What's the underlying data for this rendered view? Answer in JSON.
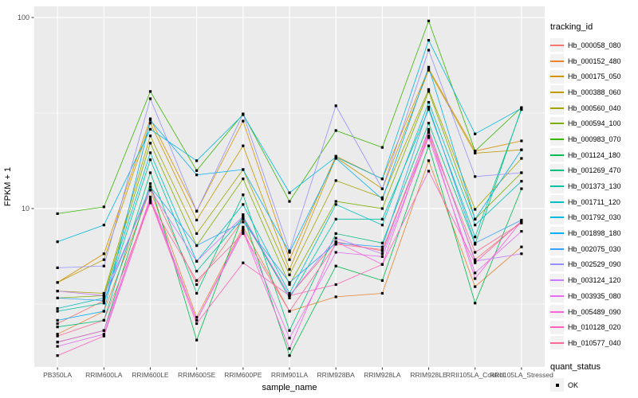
{
  "figure": {
    "panel_bg": "#EBEBEB",
    "grid_color": "#FFFFFF",
    "axis_text_color": "#4D4D4D",
    "tick_color": "#333333",
    "point_color": "#000000"
  },
  "axes": {
    "x_title": "sample_name",
    "y_title": "FPKM + 1",
    "y_tick_labels": [
      "100",
      "10"
    ]
  },
  "legend": {
    "title": "tracking_id"
  },
  "legend2": {
    "title": "quant_status",
    "items": [
      {
        "label": "OK",
        "marker": "black-square"
      }
    ]
  },
  "chart_data": {
    "type": "line",
    "title": "",
    "xlabel": "sample_name",
    "ylabel": "FPKM + 1",
    "y_scale": "log10",
    "ylim": [
      1.5,
      113
    ],
    "y_major_ticks": [
      10,
      100
    ],
    "y_minor_gridlines": [
      3.162,
      31.62
    ],
    "grid": true,
    "legend_position": "right",
    "point_marker": "black-square",
    "categories": [
      "PB350LA",
      "RRIM600LA",
      "RRIM600LE",
      "RRIM600SE",
      "RRIM600PE",
      "RRIM901LA",
      "RRIM928BA",
      "RRIM928LA",
      "RRIM928LE",
      "RRII105LA_Control",
      "RRII105LA_Stressed"
    ],
    "series": [
      {
        "name": "Hb_000058_080",
        "color": "#F8766D",
        "values": [
          2.5,
          3.3,
          13.0,
          4.0,
          8.8,
          3.5,
          6.7,
          6.0,
          25.5,
          5.4,
          8.5
        ]
      },
      {
        "name": "Hb_000152_480",
        "color": "#EA8331",
        "values": [
          2.2,
          2.9,
          12.5,
          2.7,
          8.0,
          2.9,
          3.45,
          3.6,
          17.8,
          3.9,
          6.3
        ]
      },
      {
        "name": "Hb_000175_050",
        "color": "#D89000",
        "values": [
          4.1,
          5.8,
          29.5,
          9.7,
          28.7,
          5.4,
          18.8,
          14.3,
          54.0,
          20.0,
          22.6
        ]
      },
      {
        "name": "Hb_000388_060",
        "color": "#C09B00",
        "values": [
          4.1,
          5.4,
          28.0,
          8.7,
          21.3,
          4.8,
          18.5,
          12.7,
          53.0,
          19.5,
          20.3
        ]
      },
      {
        "name": "Hb_000560_040",
        "color": "#A3A500",
        "values": [
          3.7,
          3.6,
          24.0,
          7.4,
          16.0,
          4.5,
          14.0,
          11.4,
          42.0,
          9.9,
          18.3
        ]
      },
      {
        "name": "Hb_000594_100",
        "color": "#7CAE00",
        "values": [
          3.4,
          3.5,
          22.0,
          6.4,
          14.3,
          4.0,
          10.9,
          10.0,
          41.0,
          8.8,
          15.4
        ]
      },
      {
        "name": "Hb_000983_070",
        "color": "#39B600",
        "values": [
          9.4,
          10.2,
          41.0,
          15.8,
          31.3,
          10.9,
          25.6,
          20.9,
          96.0,
          20.0,
          33.8
        ]
      },
      {
        "name": "Hb_001124_180",
        "color": "#00BB4E",
        "values": [
          2.0,
          2.3,
          13.5,
          2.05,
          9.3,
          1.7,
          5.0,
          4.2,
          21.3,
          3.2,
          12.7
        ]
      },
      {
        "name": "Hb_001269_470",
        "color": "#00BF7D",
        "values": [
          2.4,
          2.6,
          15.4,
          3.6,
          11.8,
          2.3,
          7.4,
          6.6,
          28.0,
          6.5,
          33.5
        ]
      },
      {
        "name": "Hb_001373_130",
        "color": "#00C1A3",
        "values": [
          2.9,
          3.2,
          18.0,
          4.7,
          9.0,
          3.4,
          8.8,
          8.8,
          33.0,
          7.1,
          33.0
        ]
      },
      {
        "name": "Hb_001711_120",
        "color": "#00BFC4",
        "values": [
          3.0,
          3.4,
          19.6,
          5.3,
          10.5,
          3.6,
          10.5,
          8.2,
          36.0,
          8.2,
          13.9
        ]
      },
      {
        "name": "Hb_001792_030",
        "color": "#00BAE0",
        "values": [
          6.7,
          8.2,
          26.0,
          17.8,
          31.0,
          12.1,
          18.6,
          14.3,
          76.0,
          24.6,
          33.5
        ]
      },
      {
        "name": "Hb_001898_180",
        "color": "#00B0F6",
        "values": [
          2.6,
          2.9,
          29.0,
          15.0,
          16.0,
          5.9,
          18.3,
          11.2,
          55.0,
          8.8,
          20.3
        ]
      },
      {
        "name": "Hb_002075_030",
        "color": "#35A2FF",
        "values": [
          3.4,
          3.3,
          13.0,
          6.4,
          8.5,
          4.1,
          6.6,
          6.3,
          34.0,
          6.6,
          8.7
        ]
      },
      {
        "name": "Hb_002529_090",
        "color": "#9590FF",
        "values": [
          4.9,
          5.0,
          37.6,
          9.7,
          31.3,
          6.0,
          34.5,
          12.7,
          67.5,
          14.7,
          15.4
        ]
      },
      {
        "name": "Hb_003124_120",
        "color": "#C77CFF",
        "values": [
          3.7,
          3.5,
          12.5,
          5.3,
          9.1,
          3.5,
          7.0,
          5.8,
          26.0,
          5.3,
          5.8
        ]
      },
      {
        "name": "Hb_003935_080",
        "color": "#E76BF3",
        "values": [
          1.9,
          2.2,
          11.5,
          2.6,
          7.8,
          2.1,
          5.9,
          5.6,
          23.5,
          4.6,
          7.6
        ]
      },
      {
        "name": "Hb_005489_090",
        "color": "#FA62DB",
        "values": [
          2.0,
          2.3,
          11.2,
          2.6,
          7.6,
          1.85,
          6.7,
          5.1,
          25.0,
          4.3,
          8.6
        ]
      },
      {
        "name": "Hb_010128_020",
        "color": "#FF62BC",
        "values": [
          1.7,
          2.15,
          11.0,
          2.5,
          5.2,
          3.5,
          4.0,
          5.1,
          15.7,
          5.2,
          8.6
        ]
      },
      {
        "name": "Hb_010577_040",
        "color": "#FF6A98",
        "values": [
          2.15,
          2.6,
          10.7,
          4.2,
          7.4,
          2.9,
          6.5,
          6.1,
          24.0,
          5.9,
          8.4
        ]
      }
    ]
  }
}
